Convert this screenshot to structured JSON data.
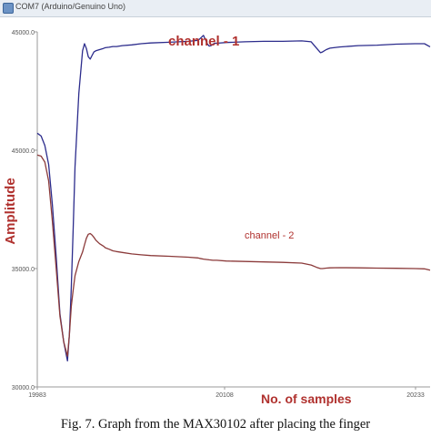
{
  "window": {
    "title": "COM7 (Arduino/Genuino Uno)"
  },
  "caption": "Fig. 7.   Graph from the MAX30102 after placing the finger",
  "colors": {
    "channel_1": "#2c2c8c",
    "channel_2": "#8b3a3a",
    "annotation": "#b0312e",
    "axis": "#9a9a9a"
  },
  "chart_data": {
    "type": "line",
    "title": "",
    "xlabel": "No. of samples",
    "ylabel": "Amplitude",
    "x_ticks": [
      "19983",
      "20108",
      "20233"
    ],
    "y_ticks": [
      "30000.0",
      "35000.0",
      "45000.0",
      "45000.0"
    ],
    "series": [
      {
        "name": "channel - 1",
        "x": [
          0,
          2,
          4,
          6,
          8,
          10,
          12,
          14,
          16,
          17,
          18,
          19,
          20,
          22,
          24,
          25,
          26,
          27,
          28,
          29,
          30,
          31,
          33,
          35,
          36,
          38,
          40,
          42,
          45,
          50,
          55,
          60,
          70,
          80,
          85,
          86,
          88,
          90,
          91,
          92,
          93,
          94,
          95,
          100,
          110,
          120,
          130,
          140,
          145,
          148,
          150,
          151,
          153,
          155,
          160,
          170,
          180,
          190,
          200,
          205,
          208
        ],
        "y": [
          40720,
          40600,
          40200,
          39400,
          37700,
          35500,
          33100,
          31900,
          31100,
          32200,
          34200,
          36700,
          39300,
          42400,
          44200,
          44500,
          44300,
          43950,
          43850,
          44000,
          44150,
          44200,
          44250,
          44300,
          44330,
          44350,
          44380,
          44380,
          44420,
          44450,
          44500,
          44530,
          44560,
          44600,
          44640,
          44700,
          44850,
          44500,
          44400,
          44420,
          44480,
          44520,
          44520,
          44550,
          44580,
          44600,
          44600,
          44620,
          44580,
          44300,
          44120,
          44150,
          44250,
          44310,
          44360,
          44420,
          44440,
          44480,
          44500,
          44500,
          44370
        ]
      },
      {
        "name": "channel - 2",
        "x": [
          0,
          2,
          4,
          6,
          8,
          10,
          12,
          14,
          16,
          17,
          18,
          19,
          20,
          22,
          24,
          25,
          26,
          27,
          28,
          29,
          30,
          31,
          33,
          35,
          36,
          38,
          40,
          42,
          45,
          50,
          55,
          60,
          70,
          80,
          85,
          86,
          88,
          90,
          91,
          92,
          93,
          94,
          95,
          100,
          110,
          120,
          130,
          140,
          145,
          148,
          150,
          151,
          153,
          155,
          160,
          170,
          180,
          190,
          200,
          205,
          208
        ],
        "y": [
          39800,
          39750,
          39500,
          38700,
          37000,
          35000,
          33000,
          31900,
          31300,
          32200,
          33400,
          34100,
          34700,
          35300,
          35700,
          36000,
          36280,
          36450,
          36480,
          36420,
          36320,
          36200,
          36050,
          35950,
          35880,
          35820,
          35750,
          35720,
          35680,
          35620,
          35580,
          35550,
          35520,
          35480,
          35450,
          35430,
          35400,
          35380,
          35370,
          35360,
          35350,
          35350,
          35350,
          35320,
          35300,
          35280,
          35260,
          35230,
          35150,
          35050,
          35000,
          35000,
          35020,
          35030,
          35040,
          35030,
          35020,
          35010,
          35000,
          34990,
          34930
        ]
      }
    ],
    "annotations": [
      "channel - 1",
      "channel - 2"
    ],
    "grid": false,
    "legend": "none"
  }
}
